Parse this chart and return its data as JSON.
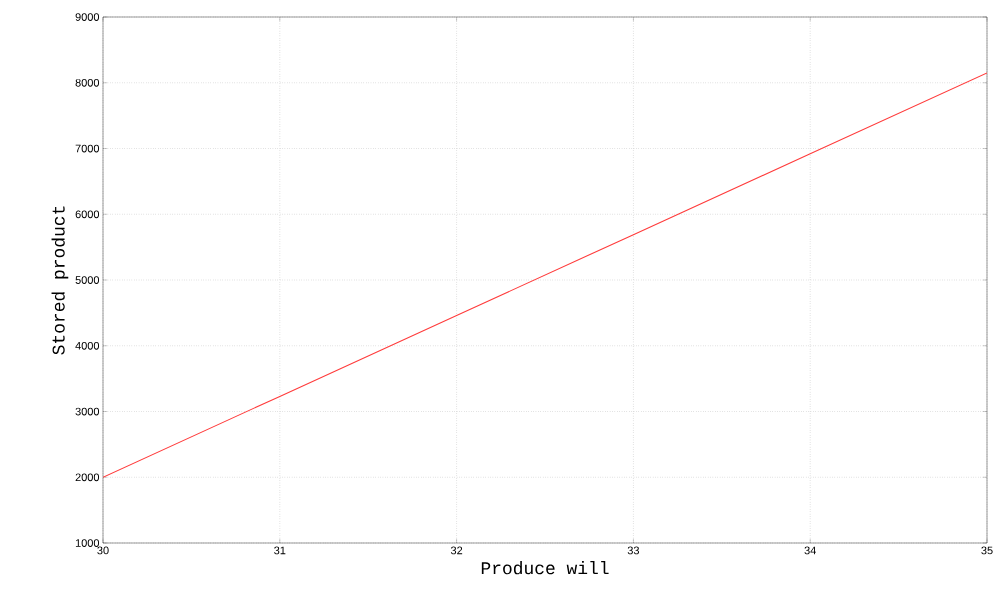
{
  "chart_data": {
    "type": "line",
    "xlabel": "Produce will",
    "ylabel": "Stored product",
    "x": [
      30,
      31,
      32,
      33,
      34,
      35
    ],
    "series": [
      {
        "color": "#ff3b3b",
        "values": [
          2000,
          3230,
          4460,
          5690,
          6920,
          8150
        ]
      }
    ],
    "xlim": [
      30,
      35
    ],
    "ylim": [
      1000,
      9000
    ],
    "xticks": [
      30,
      31,
      32,
      33,
      34,
      35
    ],
    "yticks": [
      1000,
      2000,
      3000,
      4000,
      5000,
      6000,
      7000,
      8000,
      9000
    ],
    "grid": true,
    "line_style": "solid",
    "marker": "none"
  }
}
